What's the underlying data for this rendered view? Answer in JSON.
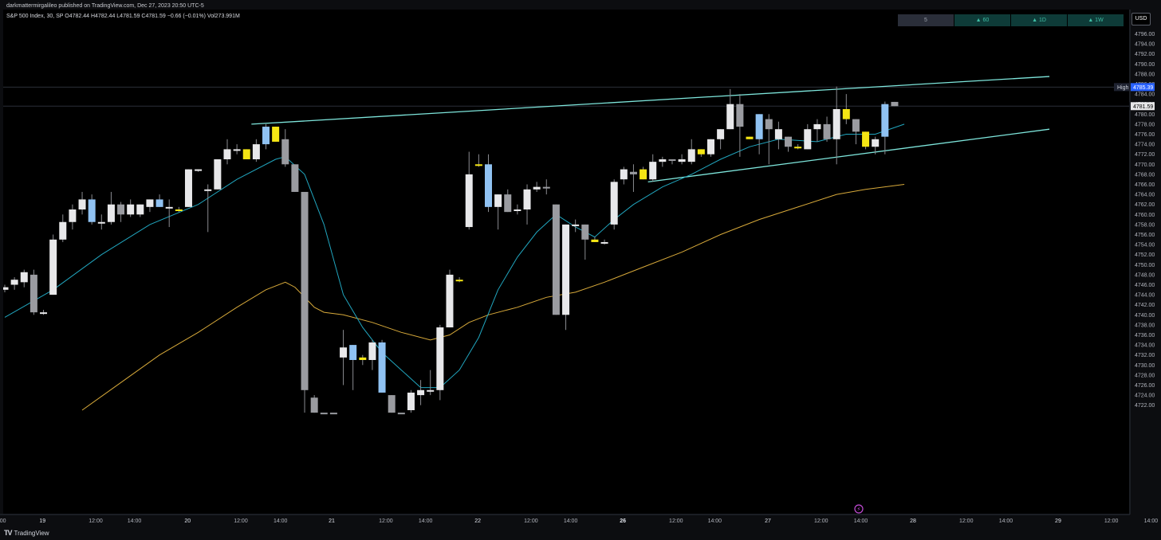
{
  "header": {
    "publish_line": "darkmattermirgalileo published on TradingView.com, Dec 27, 2023 20:50 UTC-5",
    "symbol_line": "S&P 500 Index, 30, SP  O4782.44  H4782.44  L4781.59  C4781.59  −0.66 (−0.01%)  Vol273.991M"
  },
  "toolbar": {
    "timeframes": [
      {
        "label": "5",
        "kind": "active"
      },
      {
        "label": "▲ 60",
        "kind": "htf"
      },
      {
        "label": "▲ 1D",
        "kind": "htf"
      },
      {
        "label": "▲ 1W",
        "kind": "htf"
      }
    ],
    "currency": "USD"
  },
  "footer": {
    "brand": "TradingView"
  },
  "colors": {
    "bull_white": "#e8e8ea",
    "bear_gray": "#9a9ba0",
    "blue": "#90c2f2",
    "yellow": "#f5e614",
    "ema_fast": "#21a6bf",
    "ema_slow": "#d7a93a",
    "trend": "#7ee6dc",
    "price_tag": "#2962ff"
  },
  "chart_data": {
    "type": "candlestick",
    "symbol": "S&P 500 Index",
    "interval": "30",
    "ylim": [
      4720.5,
      4798
    ],
    "y_ticks": [
      4722,
      4724,
      4726,
      4728,
      4730,
      4732,
      4734,
      4736,
      4738,
      4740,
      4742,
      4744,
      4746,
      4748,
      4750,
      4752,
      4754,
      4756,
      4758,
      4760,
      4762,
      4764,
      4766,
      4768,
      4770,
      4772,
      4774,
      4776,
      4778,
      4780,
      4782,
      4784,
      4786,
      4788,
      4790,
      4792,
      4794,
      4796
    ],
    "x_labels": [
      {
        "text": "00",
        "i": -0.2
      },
      {
        "text": "19",
        "i": 3.9
      },
      {
        "text": "12:00",
        "i": 9.4
      },
      {
        "text": "14:00",
        "i": 13.4
      },
      {
        "text": "20",
        "i": 18.9
      },
      {
        "text": "12:00",
        "i": 24.4
      },
      {
        "text": "14:00",
        "i": 28.5
      },
      {
        "text": "21",
        "i": 33.8
      },
      {
        "text": "12:00",
        "i": 39.4
      },
      {
        "text": "14:00",
        "i": 43.5
      },
      {
        "text": "22",
        "i": 48.9
      },
      {
        "text": "12:00",
        "i": 54.4
      },
      {
        "text": "14:00",
        "i": 58.5
      },
      {
        "text": "26",
        "i": 63.9
      },
      {
        "text": "12:00",
        "i": 69.4
      },
      {
        "text": "14:00",
        "i": 73.4
      },
      {
        "text": "27",
        "i": 78.9
      },
      {
        "text": "12:00",
        "i": 84.4
      },
      {
        "text": "14:00",
        "i": 88.5
      },
      {
        "text": "28",
        "i": 93.9
      },
      {
        "text": "12:00",
        "i": 99.4
      },
      {
        "text": "14:00",
        "i": 103.5
      },
      {
        "text": "29",
        "i": 108.9
      },
      {
        "text": "12:00",
        "i": 114.4
      },
      {
        "text": "14:00",
        "i": 118.5
      }
    ],
    "candles": [
      {
        "o": 4745.0,
        "h": 4746.0,
        "l": 4744.5,
        "c": 4745.5,
        "color": "bull_white"
      },
      {
        "o": 4746.0,
        "h": 4747.5,
        "l": 4745.0,
        "c": 4747.0,
        "color": "bull_white"
      },
      {
        "o": 4746.5,
        "h": 4749.0,
        "l": 4745.5,
        "c": 4748.5,
        "color": "bull_white"
      },
      {
        "o": 4748.0,
        "h": 4749.0,
        "l": 4740.0,
        "c": 4740.5,
        "color": "bear_gray"
      },
      {
        "o": 4740.5,
        "h": 4741.0,
        "l": 4740.0,
        "c": 4740.5,
        "color": "bull_white"
      },
      {
        "o": 4744.0,
        "h": 4756.0,
        "l": 4744.0,
        "c": 4755.0,
        "color": "bull_white"
      },
      {
        "o": 4755.0,
        "h": 4760.0,
        "l": 4754.5,
        "c": 4758.5,
        "color": "bull_white"
      },
      {
        "o": 4758.5,
        "h": 4762.0,
        "l": 4757.0,
        "c": 4761.0,
        "color": "bull_white"
      },
      {
        "o": 4761.0,
        "h": 4764.5,
        "l": 4760.0,
        "c": 4763.0,
        "color": "bull_white"
      },
      {
        "o": 4763.0,
        "h": 4764.0,
        "l": 4758.0,
        "c": 4758.5,
        "color": "blue"
      },
      {
        "o": 4758.5,
        "h": 4760.0,
        "l": 4757.0,
        "c": 4758.5,
        "color": "bull_white"
      },
      {
        "o": 4758.5,
        "h": 4764.5,
        "l": 4758.0,
        "c": 4762.0,
        "color": "bull_white"
      },
      {
        "o": 4762.0,
        "h": 4762.5,
        "l": 4758.5,
        "c": 4760.0,
        "color": "bear_gray"
      },
      {
        "o": 4760.0,
        "h": 4763.0,
        "l": 4759.5,
        "c": 4762.0,
        "color": "bull_white"
      },
      {
        "o": 4760.0,
        "h": 4762.0,
        "l": 4759.5,
        "c": 4762.0,
        "color": "bull_white"
      },
      {
        "o": 4761.5,
        "h": 4763.0,
        "l": 4760.5,
        "c": 4763.0,
        "color": "bull_white"
      },
      {
        "o": 4763.0,
        "h": 4764.0,
        "l": 4761.5,
        "c": 4761.5,
        "color": "blue"
      },
      {
        "o": 4761.5,
        "h": 4763.0,
        "l": 4757.5,
        "c": 4761.5,
        "color": "bull_white"
      },
      {
        "o": 4761.0,
        "h": 4761.5,
        "l": 4760.5,
        "c": 4761.0,
        "color": "yellow"
      },
      {
        "o": 4761.5,
        "h": 4769.0,
        "l": 4761.5,
        "c": 4769.0,
        "color": "bull_white"
      },
      {
        "o": 4769.0,
        "h": 4769.0,
        "l": 4768.5,
        "c": 4769.0,
        "color": "bull_white"
      },
      {
        "o": 4765.0,
        "h": 4766.0,
        "l": 4756.5,
        "c": 4765.0,
        "color": "bull_white"
      },
      {
        "o": 4765.0,
        "h": 4771.0,
        "l": 4765.0,
        "c": 4771.0,
        "color": "bull_white"
      },
      {
        "o": 4771.0,
        "h": 4775.0,
        "l": 4770.0,
        "c": 4773.0,
        "color": "bull_white"
      },
      {
        "o": 4773.0,
        "h": 4774.0,
        "l": 4772.0,
        "c": 4773.0,
        "color": "bull_white"
      },
      {
        "o": 4773.0,
        "h": 4773.0,
        "l": 4771.0,
        "c": 4771.0,
        "color": "yellow"
      },
      {
        "o": 4771.0,
        "h": 4775.0,
        "l": 4770.5,
        "c": 4774.0,
        "color": "bull_white"
      },
      {
        "o": 4774.0,
        "h": 4778.0,
        "l": 4773.0,
        "c": 4777.5,
        "color": "blue"
      },
      {
        "o": 4777.5,
        "h": 4777.5,
        "l": 4774.5,
        "c": 4774.5,
        "color": "yellow"
      },
      {
        "o": 4775.0,
        "h": 4777.0,
        "l": 4769.5,
        "c": 4770.0,
        "color": "bear_gray"
      },
      {
        "o": 4770.0,
        "h": 4770.0,
        "l": 4764.5,
        "c": 4764.5,
        "color": "bear_gray"
      },
      {
        "o": 4764.5,
        "h": 4764.5,
        "l": 4720.5,
        "c": 4725.0,
        "color": "bear_gray"
      },
      {
        "o": 4723.5,
        "h": 4724.0,
        "l": 4720.5,
        "c": 4720.5,
        "color": "bear_gray"
      },
      {
        "o": 4720.5,
        "h": 4720.5,
        "l": 4720.5,
        "c": 4720.5,
        "color": "bear_gray"
      },
      {
        "o": 4720.5,
        "h": 4720.5,
        "l": 4720.5,
        "c": 4720.5,
        "color": "bear_gray"
      },
      {
        "o": 4731.5,
        "h": 4737.0,
        "l": 4726.0,
        "c": 4733.5,
        "color": "bull_white"
      },
      {
        "o": 4734.0,
        "h": 4734.0,
        "l": 4725.0,
        "c": 4731.0,
        "color": "blue"
      },
      {
        "o": 4731.0,
        "h": 4732.0,
        "l": 4730.0,
        "c": 4731.5,
        "color": "yellow"
      },
      {
        "o": 4731.0,
        "h": 4735.0,
        "l": 4729.0,
        "c": 4734.5,
        "color": "bull_white"
      },
      {
        "o": 4734.5,
        "h": 4735.0,
        "l": 4724.5,
        "c": 4724.5,
        "color": "blue"
      },
      {
        "o": 4724.0,
        "h": 4724.0,
        "l": 4720.5,
        "c": 4720.5,
        "color": "bear_gray"
      },
      {
        "o": 4720.5,
        "h": 4720.5,
        "l": 4720.5,
        "c": 4720.5,
        "color": "bear_gray"
      },
      {
        "o": 4721.0,
        "h": 4725.0,
        "l": 4720.5,
        "c": 4724.5,
        "color": "bull_white"
      },
      {
        "o": 4724.0,
        "h": 4727.0,
        "l": 4722.0,
        "c": 4725.0,
        "color": "bull_white"
      },
      {
        "o": 4725.0,
        "h": 4729.0,
        "l": 4724.0,
        "c": 4725.0,
        "color": "bull_white"
      },
      {
        "o": 4725.0,
        "h": 4738.0,
        "l": 4723.0,
        "c": 4737.5,
        "color": "bull_white"
      },
      {
        "o": 4737.5,
        "h": 4749.0,
        "l": 4737.5,
        "c": 4748.0,
        "color": "bull_white"
      },
      {
        "o": 4747.0,
        "h": 4747.5,
        "l": 4746.5,
        "c": 4747.0,
        "color": "yellow"
      },
      {
        "o": 4757.5,
        "h": 4772.5,
        "l": 4757.0,
        "c": 4768.0,
        "color": "bull_white"
      },
      {
        "o": 4770.0,
        "h": 4772.0,
        "l": 4769.5,
        "c": 4770.0,
        "color": "yellow"
      },
      {
        "o": 4770.0,
        "h": 4772.0,
        "l": 4760.5,
        "c": 4761.5,
        "color": "blue"
      },
      {
        "o": 4761.5,
        "h": 4764.0,
        "l": 4757.0,
        "c": 4764.0,
        "color": "bull_white"
      },
      {
        "o": 4764.0,
        "h": 4765.0,
        "l": 4760.5,
        "c": 4760.5,
        "color": "bear_gray"
      },
      {
        "o": 4761.0,
        "h": 4762.0,
        "l": 4760.0,
        "c": 4761.0,
        "color": "bull_white"
      },
      {
        "o": 4761.0,
        "h": 4766.0,
        "l": 4758.0,
        "c": 4765.0,
        "color": "bull_white"
      },
      {
        "o": 4765.0,
        "h": 4766.5,
        "l": 4764.5,
        "c": 4765.5,
        "color": "bull_white"
      },
      {
        "o": 4765.5,
        "h": 4767.0,
        "l": 4764.0,
        "c": 4765.5,
        "color": "bear_gray"
      },
      {
        "o": 4762.0,
        "h": 4762.0,
        "l": 4740.0,
        "c": 4740.0,
        "color": "bear_gray"
      },
      {
        "o": 4740.0,
        "h": 4758.0,
        "l": 4737.0,
        "c": 4758.0,
        "color": "bull_white"
      },
      {
        "o": 4758.0,
        "h": 4759.0,
        "l": 4756.5,
        "c": 4758.0,
        "color": "bull_white"
      },
      {
        "o": 4758.0,
        "h": 4758.0,
        "l": 4751.0,
        "c": 4755.0,
        "color": "bear_gray"
      },
      {
        "o": 4755.0,
        "h": 4755.5,
        "l": 4754.5,
        "c": 4754.5,
        "color": "yellow"
      },
      {
        "o": 4754.5,
        "h": 4755.0,
        "l": 4754.0,
        "c": 4754.5,
        "color": "bull_white"
      },
      {
        "o": 4758.0,
        "h": 4767.0,
        "l": 4757.0,
        "c": 4766.5,
        "color": "bull_white"
      },
      {
        "o": 4767.0,
        "h": 4769.5,
        "l": 4766.0,
        "c": 4769.0,
        "color": "bull_white"
      },
      {
        "o": 4768.0,
        "h": 4770.0,
        "l": 4764.5,
        "c": 4768.5,
        "color": "bear_gray"
      },
      {
        "o": 4769.0,
        "h": 4769.5,
        "l": 4767.0,
        "c": 4767.0,
        "color": "yellow"
      },
      {
        "o": 4767.0,
        "h": 4772.0,
        "l": 4766.5,
        "c": 4770.5,
        "color": "bull_white"
      },
      {
        "o": 4770.5,
        "h": 4771.5,
        "l": 4769.5,
        "c": 4771.0,
        "color": "bull_white"
      },
      {
        "o": 4771.0,
        "h": 4771.0,
        "l": 4770.0,
        "c": 4771.0,
        "color": "bear_gray"
      },
      {
        "o": 4770.5,
        "h": 4772.0,
        "l": 4770.0,
        "c": 4771.0,
        "color": "bull_white"
      },
      {
        "o": 4770.5,
        "h": 4775.0,
        "l": 4770.0,
        "c": 4773.0,
        "color": "bull_white"
      },
      {
        "o": 4773.0,
        "h": 4773.0,
        "l": 4771.5,
        "c": 4772.0,
        "color": "yellow"
      },
      {
        "o": 4772.0,
        "h": 4775.0,
        "l": 4771.5,
        "c": 4775.0,
        "color": "bull_white"
      },
      {
        "o": 4775.0,
        "h": 4777.0,
        "l": 4773.0,
        "c": 4777.0,
        "color": "bull_white"
      },
      {
        "o": 4777.0,
        "h": 4785.0,
        "l": 4777.0,
        "c": 4782.0,
        "color": "bull_white"
      },
      {
        "o": 4782.0,
        "h": 4784.0,
        "l": 4771.5,
        "c": 4777.5,
        "color": "bear_gray"
      },
      {
        "o": 4775.5,
        "h": 4775.5,
        "l": 4775.0,
        "c": 4775.0,
        "color": "yellow"
      },
      {
        "o": 4775.0,
        "h": 4780.0,
        "l": 4772.0,
        "c": 4780.0,
        "color": "blue"
      },
      {
        "o": 4779.0,
        "h": 4780.0,
        "l": 4770.0,
        "c": 4777.0,
        "color": "bear_gray"
      },
      {
        "o": 4777.0,
        "h": 4778.5,
        "l": 4773.0,
        "c": 4775.0,
        "color": "bull_white"
      },
      {
        "o": 4775.5,
        "h": 4775.5,
        "l": 4772.5,
        "c": 4773.5,
        "color": "bear_gray"
      },
      {
        "o": 4773.5,
        "h": 4774.0,
        "l": 4773.0,
        "c": 4773.5,
        "color": "yellow"
      },
      {
        "o": 4773.0,
        "h": 4778.0,
        "l": 4773.0,
        "c": 4777.0,
        "color": "bull_white"
      },
      {
        "o": 4777.0,
        "h": 4779.0,
        "l": 4774.5,
        "c": 4778.0,
        "color": "bull_white"
      },
      {
        "o": 4778.0,
        "h": 4779.5,
        "l": 4774.5,
        "c": 4775.0,
        "color": "bear_gray"
      },
      {
        "o": 4775.0,
        "h": 4785.5,
        "l": 4770.0,
        "c": 4781.0,
        "color": "bull_white"
      },
      {
        "o": 4781.0,
        "h": 4784.0,
        "l": 4778.0,
        "c": 4779.0,
        "color": "yellow"
      },
      {
        "o": 4779.0,
        "h": 4779.0,
        "l": 4774.0,
        "c": 4776.5,
        "color": "bear_gray"
      },
      {
        "o": 4776.5,
        "h": 4776.5,
        "l": 4773.0,
        "c": 4773.5,
        "color": "yellow"
      },
      {
        "o": 4773.5,
        "h": 4775.5,
        "l": 4772.0,
        "c": 4775.0,
        "color": "bull_white"
      },
      {
        "o": 4775.5,
        "h": 4782.5,
        "l": 4772.0,
        "c": 4782.0,
        "color": "blue"
      },
      {
        "o": 4782.44,
        "h": 4782.44,
        "l": 4781.59,
        "c": 4781.59,
        "color": "bear_gray"
      }
    ],
    "ema_fast": [
      {
        "i": 0,
        "y": 4739.5
      },
      {
        "i": 5,
        "y": 4745.0
      },
      {
        "i": 10,
        "y": 4752.0
      },
      {
        "i": 15,
        "y": 4758.0
      },
      {
        "i": 20,
        "y": 4762.0
      },
      {
        "i": 24,
        "y": 4767.0
      },
      {
        "i": 28,
        "y": 4771.0
      },
      {
        "i": 29,
        "y": 4771.5
      },
      {
        "i": 31,
        "y": 4768.0
      },
      {
        "i": 33,
        "y": 4758.0
      },
      {
        "i": 35,
        "y": 4744.0
      },
      {
        "i": 37,
        "y": 4737.5
      },
      {
        "i": 39,
        "y": 4732.5
      },
      {
        "i": 41,
        "y": 4729.0
      },
      {
        "i": 43,
        "y": 4725.5
      },
      {
        "i": 45,
        "y": 4725.5
      },
      {
        "i": 47,
        "y": 4729.0
      },
      {
        "i": 49,
        "y": 4735.5
      },
      {
        "i": 51,
        "y": 4745.0
      },
      {
        "i": 53,
        "y": 4751.5
      },
      {
        "i": 55,
        "y": 4756.5
      },
      {
        "i": 57,
        "y": 4760.0
      },
      {
        "i": 59,
        "y": 4757.5
      },
      {
        "i": 61,
        "y": 4755.5
      },
      {
        "i": 63,
        "y": 4759.0
      },
      {
        "i": 65,
        "y": 4762.0
      },
      {
        "i": 68,
        "y": 4765.5
      },
      {
        "i": 71,
        "y": 4768.0
      },
      {
        "i": 74,
        "y": 4771.0
      },
      {
        "i": 77,
        "y": 4773.5
      },
      {
        "i": 80,
        "y": 4775.0
      },
      {
        "i": 84,
        "y": 4774.5
      },
      {
        "i": 87,
        "y": 4776.0
      },
      {
        "i": 90,
        "y": 4776.0
      },
      {
        "i": 93,
        "y": 4778.0
      }
    ],
    "ema_slow": [
      {
        "i": 8,
        "y": 4721.0
      },
      {
        "i": 12,
        "y": 4726.5
      },
      {
        "i": 16,
        "y": 4732.0
      },
      {
        "i": 20,
        "y": 4736.5
      },
      {
        "i": 24,
        "y": 4741.5
      },
      {
        "i": 27,
        "y": 4745.0
      },
      {
        "i": 29,
        "y": 4746.5
      },
      {
        "i": 30,
        "y": 4745.5
      },
      {
        "i": 32,
        "y": 4741.5
      },
      {
        "i": 33,
        "y": 4740.5
      },
      {
        "i": 35,
        "y": 4740.0
      },
      {
        "i": 38,
        "y": 4738.5
      },
      {
        "i": 41,
        "y": 4736.5
      },
      {
        "i": 44,
        "y": 4735.0
      },
      {
        "i": 46,
        "y": 4736.0
      },
      {
        "i": 48,
        "y": 4738.5
      },
      {
        "i": 50,
        "y": 4740.0
      },
      {
        "i": 53,
        "y": 4741.5
      },
      {
        "i": 56,
        "y": 4743.5
      },
      {
        "i": 59,
        "y": 4744.5
      },
      {
        "i": 62,
        "y": 4746.5
      },
      {
        "i": 66,
        "y": 4749.5
      },
      {
        "i": 70,
        "y": 4752.5
      },
      {
        "i": 74,
        "y": 4756.0
      },
      {
        "i": 78,
        "y": 4759.0
      },
      {
        "i": 82,
        "y": 4761.5
      },
      {
        "i": 86,
        "y": 4764.0
      },
      {
        "i": 89,
        "y": 4765.0
      },
      {
        "i": 93,
        "y": 4766.0
      }
    ],
    "trendlines": [
      {
        "i1": 25.5,
        "y1": 4778.0,
        "i2": 108.0,
        "y2": 4787.5
      },
      {
        "i1": 66.5,
        "y1": 4766.5,
        "i2": 108.0,
        "y2": 4777.0
      }
    ],
    "price_lines": [
      {
        "y": 4785.39,
        "tag_label": "High",
        "tag_value": "4785.39"
      },
      {
        "y": 4781.59,
        "tag_value": "4781.59"
      }
    ]
  }
}
